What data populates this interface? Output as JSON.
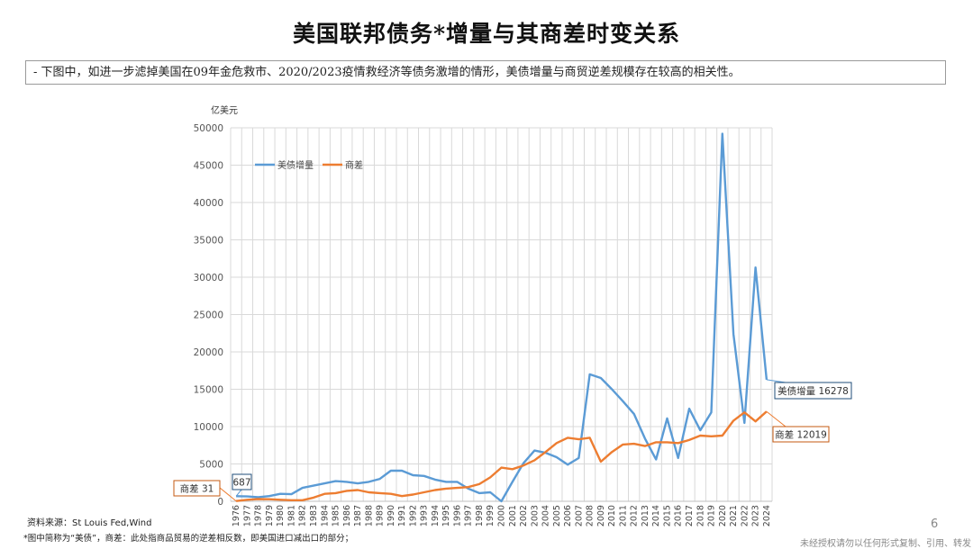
{
  "title": "美国联邦债务*增量与其商差时变关系",
  "note": "- 下图中，如进一步滤掉美国在09年金危救市、2020/2023疫情救经济等债务激增的情形，美债增量与商贸逆差规模存在较高的相关性。",
  "unit_label": "亿美元",
  "source": "资料来源：St Louis Fed,Wind",
  "footnote": "*图中简称为“美债”，商差：此处指商品贸易的逆差相反数，即美国进口减出口的部分；",
  "page_number": "6",
  "copyright": "未经授权请勿以任何形式复制、引用、转发",
  "chart_data": {
    "type": "line",
    "ylim": [
      0,
      50000
    ],
    "yticks": [
      0,
      5000,
      10000,
      15000,
      20000,
      25000,
      30000,
      35000,
      40000,
      45000,
      50000
    ],
    "grid": true,
    "legend_position": "top-left",
    "categories": [
      "1976",
      "1977",
      "1978",
      "1979",
      "1980",
      "1981",
      "1982",
      "1983",
      "1984",
      "1985",
      "1986",
      "1987",
      "1988",
      "1989",
      "1990",
      "1991",
      "1992",
      "1993",
      "1994",
      "1995",
      "1996",
      "1997",
      "1998",
      "1999",
      "2000",
      "2001",
      "2002",
      "2003",
      "2004",
      "2005",
      "2006",
      "2007",
      "2008",
      "2009",
      "2010",
      "2011",
      "2012",
      "2013",
      "2014",
      "2015",
      "2016",
      "2017",
      "2018",
      "2019",
      "2020",
      "2021",
      "2022",
      "2023",
      "2024"
    ],
    "series": [
      {
        "name": "美债增量",
        "color": "#5b9bd5",
        "values": [
          687,
          650,
          550,
          700,
          1000,
          950,
          1800,
          2100,
          2400,
          2700,
          2600,
          2400,
          2600,
          3000,
          4100,
          4100,
          3500,
          3400,
          2900,
          2600,
          2600,
          1700,
          1100,
          1200,
          0,
          2600,
          5100,
          6800,
          6500,
          5900,
          4900,
          5800,
          17000,
          16500,
          15000,
          13400,
          11700,
          8400,
          5600,
          11100,
          5800,
          12400,
          9500,
          11900,
          49200,
          22400,
          10500,
          31300,
          16278
        ]
      },
      {
        "name": "商差",
        "color": "#ed7d31",
        "values": [
          31,
          200,
          300,
          280,
          200,
          150,
          150,
          500,
          1000,
          1100,
          1400,
          1500,
          1200,
          1100,
          1000,
          700,
          900,
          1200,
          1500,
          1700,
          1800,
          1900,
          2300,
          3200,
          4500,
          4300,
          4800,
          5500,
          6600,
          7800,
          8500,
          8300,
          8500,
          5300,
          6600,
          7600,
          7700,
          7400,
          7900,
          7900,
          7800,
          8200,
          8800,
          8700,
          8800,
          10800,
          11900,
          10700,
          12019
        ]
      }
    ],
    "callouts": [
      {
        "label": "美债增量 16278"
      },
      {
        "label": "商差 12019"
      },
      {
        "label": "687"
      },
      {
        "label": "商差 31"
      }
    ]
  }
}
